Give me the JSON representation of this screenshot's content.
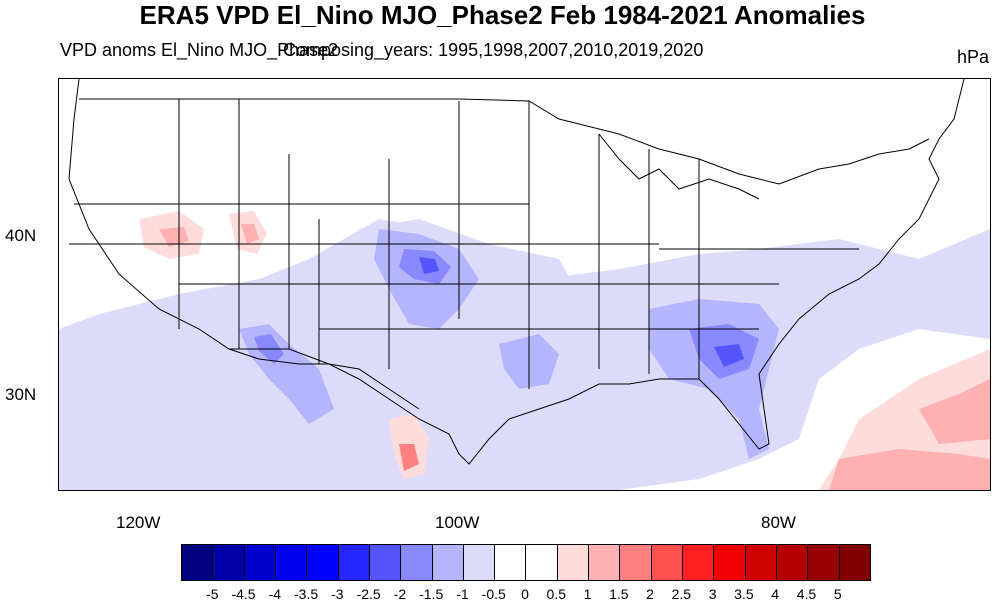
{
  "title": "ERA5 VPD El_Nino MJO_Phase2 Feb 1984-2021 Anomalies",
  "subtitle_left": "VPD anoms El_Nino MJO_Phase2",
  "subtitle_right": "Composing_years: 1995,1998,2007,2010,2019,2020",
  "units": "hPa",
  "map": {
    "lat_labels": [
      "40N",
      "30N"
    ],
    "lon_labels": [
      "120W",
      "100W",
      "80W"
    ],
    "regions": [
      {
        "name": "southeast-negative-core",
        "value": -2.5
      },
      {
        "name": "southeast-negative-outer",
        "value": -1.5
      },
      {
        "name": "plains-negative-core",
        "value": -2.5
      },
      {
        "name": "plains-negative-outer",
        "value": -1.5
      },
      {
        "name": "southwest-negative",
        "value": -2.0
      },
      {
        "name": "central-broad-negative",
        "value": -0.5
      },
      {
        "name": "atlantic-positive",
        "value": 1.5
      },
      {
        "name": "gulf-positive",
        "value": 1.5
      },
      {
        "name": "mexico-positive",
        "value": 2.0
      },
      {
        "name": "great-basin-positive",
        "value": 1.5
      },
      {
        "name": "utah-positive",
        "value": 2.0
      }
    ]
  },
  "colorbar": {
    "labels": [
      "-5",
      "-4.5",
      "-4",
      "-3.5",
      "-3",
      "-2.5",
      "-2",
      "-1.5",
      "-1",
      "-0.5",
      "0",
      "0.5",
      "1",
      "1.5",
      "2",
      "2.5",
      "3",
      "3.5",
      "4",
      "4.5",
      "5"
    ],
    "colors": [
      "#000080",
      "#0000a8",
      "#0000d0",
      "#0000ee",
      "#0000ff",
      "#2626ff",
      "#5555ff",
      "#8888ff",
      "#b4b4ff",
      "#dcdcfa",
      "#ffffff",
      "#ffffff",
      "#ffdcdc",
      "#ffb0b0",
      "#ff8080",
      "#ff5050",
      "#ff2020",
      "#f00000",
      "#d00000",
      "#b40000",
      "#960000",
      "#800000"
    ]
  }
}
